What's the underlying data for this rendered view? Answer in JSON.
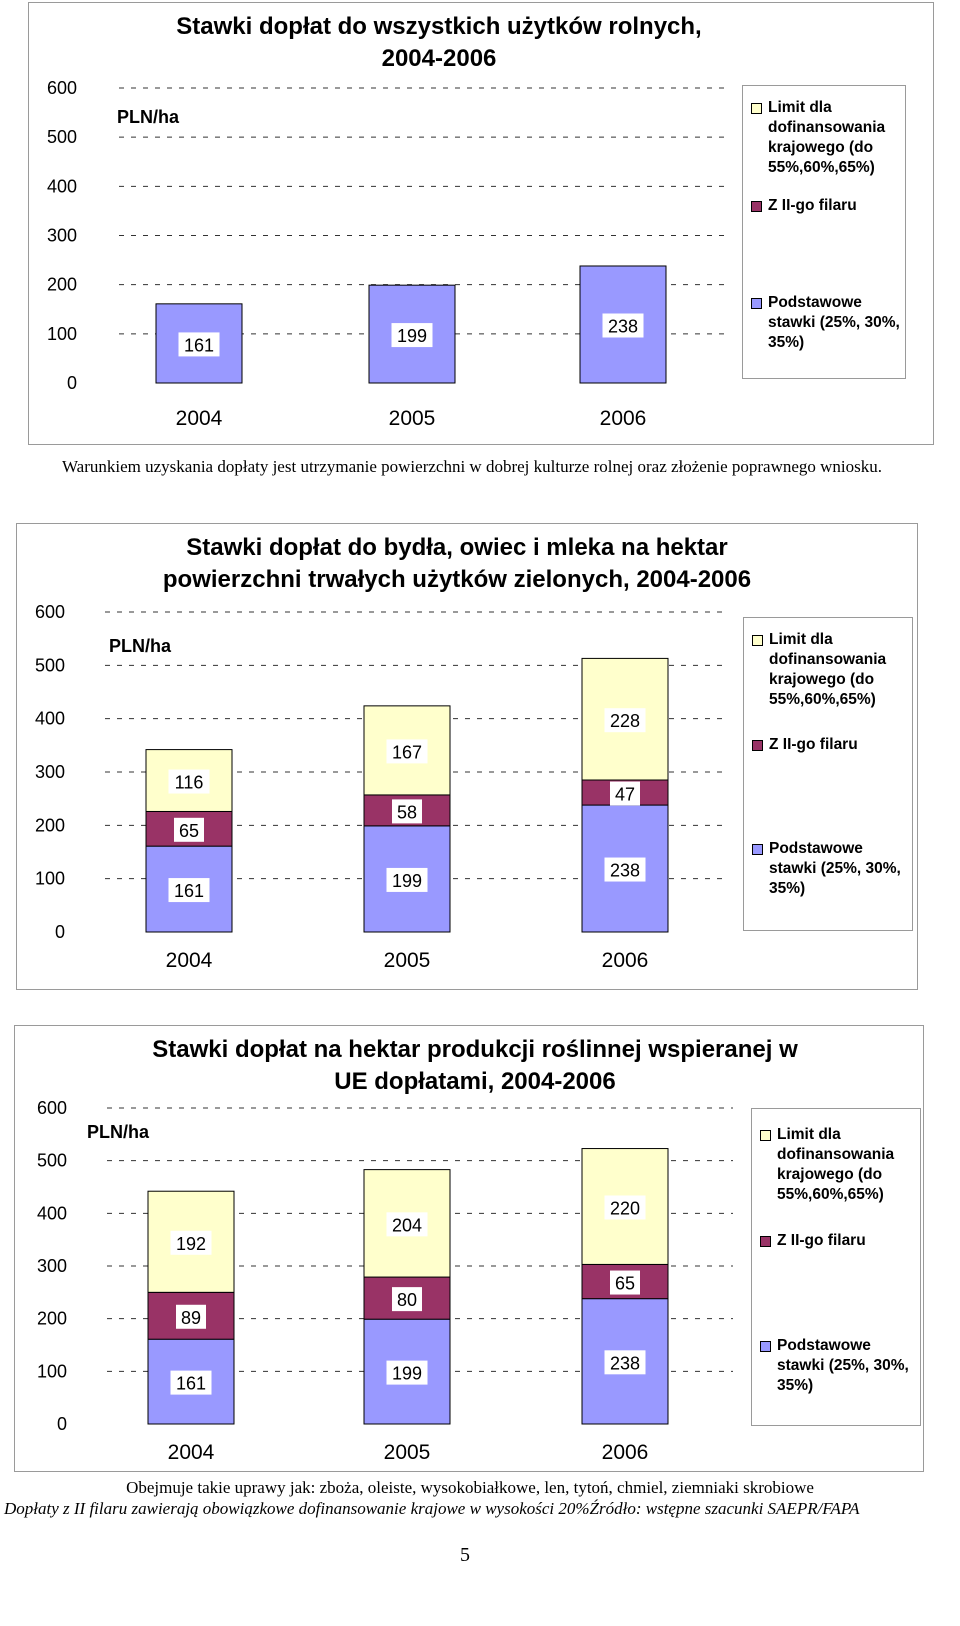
{
  "colors": {
    "podstawowe": "#9999ff",
    "filar": "#993366",
    "limit": "#ffffcc",
    "grid": "#333333",
    "frame": "#9a9a9a"
  },
  "charts": [
    {
      "title_line1": "Stawki dopłat do wszystkich użytków rolnych,",
      "title_line2": "2004-2006",
      "unit": "PLN/ha",
      "legend": {
        "limit": "Limit dla dofinansowania krajowego (do 55%,60%,65%)",
        "filar": "Z II-go filaru",
        "podstawowe": "Podstawowe stawki (25%, 30%, 35%)"
      }
    },
    {
      "title_line1": "Stawki dopłat do bydła, owiec i mleka na hektar",
      "title_line2": "powierzchni trwałych użytków zielonych, 2004-2006",
      "unit": "PLN/ha",
      "legend": {
        "limit": "Limit dla dofinansowania krajowego (do 55%,60%,65%)",
        "filar": "Z II-go filaru",
        "podstawowe": "Podstawowe stawki (25%, 30%, 35%)"
      }
    },
    {
      "title_line1": "Stawki dopłat na hektar produkcji roślinnej wspieranej w",
      "title_line2": "UE dopłatami, 2004-2006",
      "unit": "PLN/ha",
      "legend": {
        "limit": "Limit dla dofinansowania krajowego (do 55%,60%,65%)",
        "filar": "Z II-go filaru",
        "podstawowe": "Podstawowe stawki (25%, 30%, 35%)"
      }
    }
  ],
  "chart_data": [
    {
      "type": "bar",
      "stacked": true,
      "title": "Stawki dopłat do wszystkich użytków rolnych, 2004-2006",
      "ylabel": "PLN/ha",
      "categories": [
        "2004",
        "2005",
        "2006"
      ],
      "ylim": [
        0,
        600
      ],
      "yticks": [
        0,
        100,
        200,
        300,
        400,
        500,
        600
      ],
      "grid": true,
      "legend_position": "right",
      "series": [
        {
          "name": "Podstawowe stawki (25%, 30%, 35%)",
          "color": "#9999ff",
          "values": [
            161,
            199,
            238
          ]
        }
      ]
    },
    {
      "type": "bar",
      "stacked": true,
      "title": "Stawki dopłat do bydła, owiec i mleka na hektar powierzchni trwałych użytków zielonych, 2004-2006",
      "ylabel": "PLN/ha",
      "categories": [
        "2004",
        "2005",
        "2006"
      ],
      "ylim": [
        0,
        600
      ],
      "yticks": [
        0,
        100,
        200,
        300,
        400,
        500,
        600
      ],
      "grid": true,
      "legend_position": "right",
      "series": [
        {
          "name": "Podstawowe stawki (25%, 30%, 35%)",
          "color": "#9999ff",
          "values": [
            161,
            199,
            238
          ]
        },
        {
          "name": "Z II-go filaru",
          "color": "#993366",
          "values": [
            65,
            58,
            47
          ]
        },
        {
          "name": "Limit dla dofinansowania krajowego (do 55%,60%,65%)",
          "color": "#ffffcc",
          "values": [
            116,
            167,
            228
          ]
        }
      ]
    },
    {
      "type": "bar",
      "stacked": true,
      "title": "Stawki dopłat na hektar produkcji roślinnej wspieranej w UE dopłatami, 2004-2006",
      "ylabel": "PLN/ha",
      "categories": [
        "2004",
        "2005",
        "2006"
      ],
      "ylim": [
        0,
        600
      ],
      "yticks": [
        0,
        100,
        200,
        300,
        400,
        500,
        600
      ],
      "grid": true,
      "legend_position": "right",
      "series": [
        {
          "name": "Podstawowe stawki (25%, 30%, 35%)",
          "color": "#9999ff",
          "values": [
            161,
            199,
            238
          ]
        },
        {
          "name": "Z II-go filaru",
          "color": "#993366",
          "values": [
            89,
            80,
            65
          ]
        },
        {
          "name": "Limit dla dofinansowania krajowego (do 55%,60%,65%)",
          "color": "#ffffcc",
          "values": [
            192,
            204,
            220
          ]
        }
      ]
    }
  ],
  "notes": {
    "chart1_note": "Warunkiem uzyskania dopłaty jest utrzymanie powierzchni w dobrej kulturze rolnej oraz złożenie poprawnego wniosku.",
    "chart3_note": "Obejmuje takie uprawy jak: zboża, oleiste, wysokobiałkowe, len, tytoń, chmiel, ziemniaki skrobiowe",
    "footnote": "Dopłaty z II filaru zawierają obowiązkowe dofinansowanie krajowe w wysokości 20%Źródło: wstępne szacunki SAEPR/FAPA",
    "page_number": "5"
  }
}
